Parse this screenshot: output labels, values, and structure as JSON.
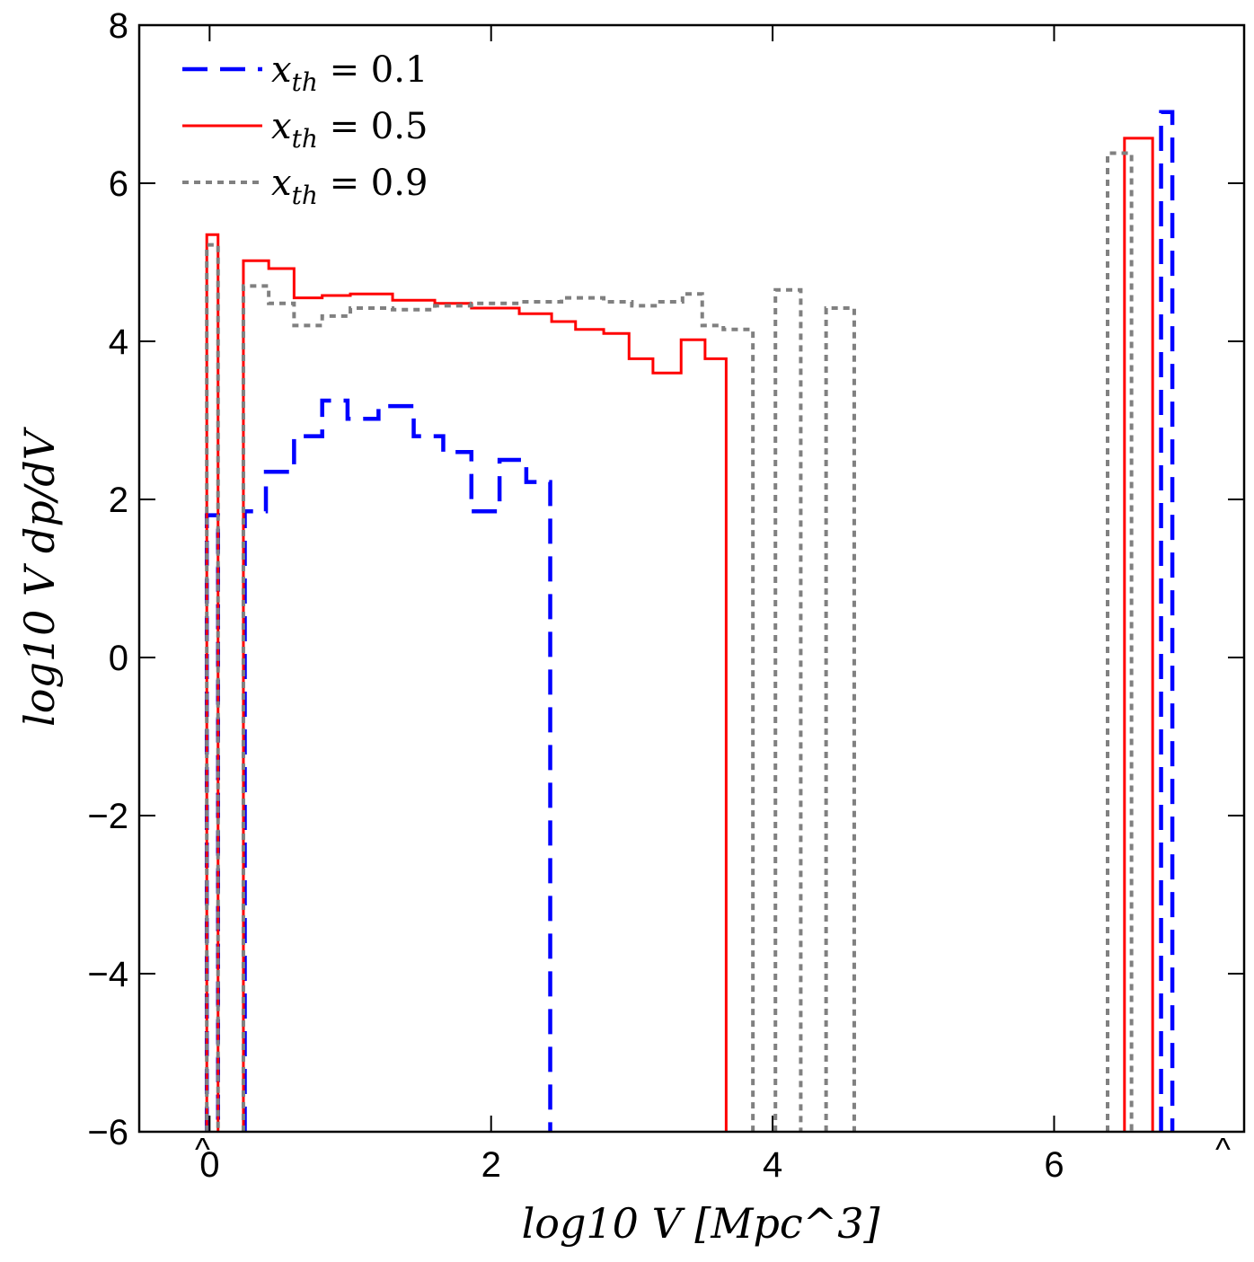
{
  "chart_data": {
    "type": "line",
    "step": true,
    "title": "",
    "xlabel": "log10 V [Mpc^3]",
    "ylabel": "log10 V dp/dV",
    "xlim": [
      -0.5,
      7.35
    ],
    "ylim": [
      -6,
      8
    ],
    "xticks": [
      0,
      2,
      4,
      6
    ],
    "yticks": [
      -6,
      -4,
      -2,
      0,
      2,
      4,
      6,
      8
    ],
    "xtick_labels": [
      "0",
      "2",
      "4",
      "6"
    ],
    "ytick_labels": [
      "−6",
      "−4",
      "−2",
      "0",
      "2",
      "4",
      "6",
      "8"
    ],
    "legend_position": "top-left",
    "markers": [
      {
        "label": "^",
        "x": -0.05
      },
      {
        "label": "^",
        "x": 7.2
      }
    ],
    "series": [
      {
        "name": "x_th = 0.1",
        "legend_label": "x",
        "legend_subscript": "th",
        "legend_value": "= 0.1",
        "color": "#0000ff",
        "style": "dashed",
        "bins": [
          {
            "x0": -0.02,
            "x1": 0.06,
            "y": 1.8
          },
          {
            "x0": 0.25,
            "x1": 0.4,
            "y": 1.85
          },
          {
            "x0": 0.4,
            "x1": 0.6,
            "y": 2.35
          },
          {
            "x0": 0.6,
            "x1": 0.8,
            "y": 2.8
          },
          {
            "x0": 0.8,
            "x1": 0.98,
            "y": 3.25
          },
          {
            "x0": 0.98,
            "x1": 1.2,
            "y": 3.02
          },
          {
            "x0": 1.2,
            "x1": 1.45,
            "y": 3.18
          },
          {
            "x0": 1.45,
            "x1": 1.66,
            "y": 2.8
          },
          {
            "x0": 1.66,
            "x1": 1.86,
            "y": 2.6
          },
          {
            "x0": 1.86,
            "x1": 2.06,
            "y": 1.85
          },
          {
            "x0": 2.06,
            "x1": 2.25,
            "y": 2.5
          },
          {
            "x0": 2.25,
            "x1": 2.42,
            "y": 2.22
          },
          {
            "x0": 6.76,
            "x1": 6.84,
            "y": 6.9
          }
        ]
      },
      {
        "name": "x_th = 0.5",
        "legend_label": "x",
        "legend_subscript": "th",
        "legend_value": "= 0.5",
        "color": "#ff0000",
        "style": "solid",
        "bins": [
          {
            "x0": -0.02,
            "x1": 0.06,
            "y": 5.35
          },
          {
            "x0": 0.24,
            "x1": 0.42,
            "y": 5.02
          },
          {
            "x0": 0.42,
            "x1": 0.6,
            "y": 4.92
          },
          {
            "x0": 0.6,
            "x1": 0.8,
            "y": 4.55
          },
          {
            "x0": 0.8,
            "x1": 1.0,
            "y": 4.58
          },
          {
            "x0": 1.0,
            "x1": 1.3,
            "y": 4.6
          },
          {
            "x0": 1.3,
            "x1": 1.6,
            "y": 4.52
          },
          {
            "x0": 1.6,
            "x1": 1.86,
            "y": 4.48
          },
          {
            "x0": 1.86,
            "x1": 2.2,
            "y": 4.42
          },
          {
            "x0": 2.2,
            "x1": 2.43,
            "y": 4.35
          },
          {
            "x0": 2.43,
            "x1": 2.6,
            "y": 4.25
          },
          {
            "x0": 2.6,
            "x1": 2.8,
            "y": 4.15
          },
          {
            "x0": 2.8,
            "x1": 2.98,
            "y": 4.1
          },
          {
            "x0": 2.98,
            "x1": 3.15,
            "y": 3.78
          },
          {
            "x0": 3.15,
            "x1": 3.35,
            "y": 3.6
          },
          {
            "x0": 3.35,
            "x1": 3.52,
            "y": 4.02
          },
          {
            "x0": 3.52,
            "x1": 3.67,
            "y": 3.78
          },
          {
            "x0": 6.5,
            "x1": 6.7,
            "y": 6.57
          }
        ]
      },
      {
        "name": "x_th = 0.9",
        "legend_label": "x",
        "legend_subscript": "th",
        "legend_value": "= 0.9",
        "color": "#808080",
        "style": "dotted",
        "bins": [
          {
            "x0": -0.02,
            "x1": 0.06,
            "y": 5.22
          },
          {
            "x0": 0.24,
            "x1": 0.42,
            "y": 4.7
          },
          {
            "x0": 0.42,
            "x1": 0.6,
            "y": 4.48
          },
          {
            "x0": 0.6,
            "x1": 0.8,
            "y": 4.2
          },
          {
            "x0": 0.8,
            "x1": 1.0,
            "y": 4.32
          },
          {
            "x0": 1.0,
            "x1": 1.3,
            "y": 4.42
          },
          {
            "x0": 1.3,
            "x1": 1.6,
            "y": 4.4
          },
          {
            "x0": 1.6,
            "x1": 1.86,
            "y": 4.45
          },
          {
            "x0": 1.86,
            "x1": 2.2,
            "y": 4.48
          },
          {
            "x0": 2.2,
            "x1": 2.5,
            "y": 4.5
          },
          {
            "x0": 2.5,
            "x1": 2.8,
            "y": 4.55
          },
          {
            "x0": 2.8,
            "x1": 3.0,
            "y": 4.5
          },
          {
            "x0": 3.0,
            "x1": 3.2,
            "y": 4.45
          },
          {
            "x0": 3.2,
            "x1": 3.36,
            "y": 4.5
          },
          {
            "x0": 3.36,
            "x1": 3.5,
            "y": 4.6
          },
          {
            "x0": 3.5,
            "x1": 3.65,
            "y": 4.2
          },
          {
            "x0": 3.65,
            "x1": 3.86,
            "y": 4.15
          },
          {
            "x0": 4.02,
            "x1": 4.2,
            "y": 4.65
          },
          {
            "x0": 4.38,
            "x1": 4.58,
            "y": 4.42
          },
          {
            "x0": 6.38,
            "x1": 6.55,
            "y": 6.38
          }
        ]
      }
    ]
  }
}
